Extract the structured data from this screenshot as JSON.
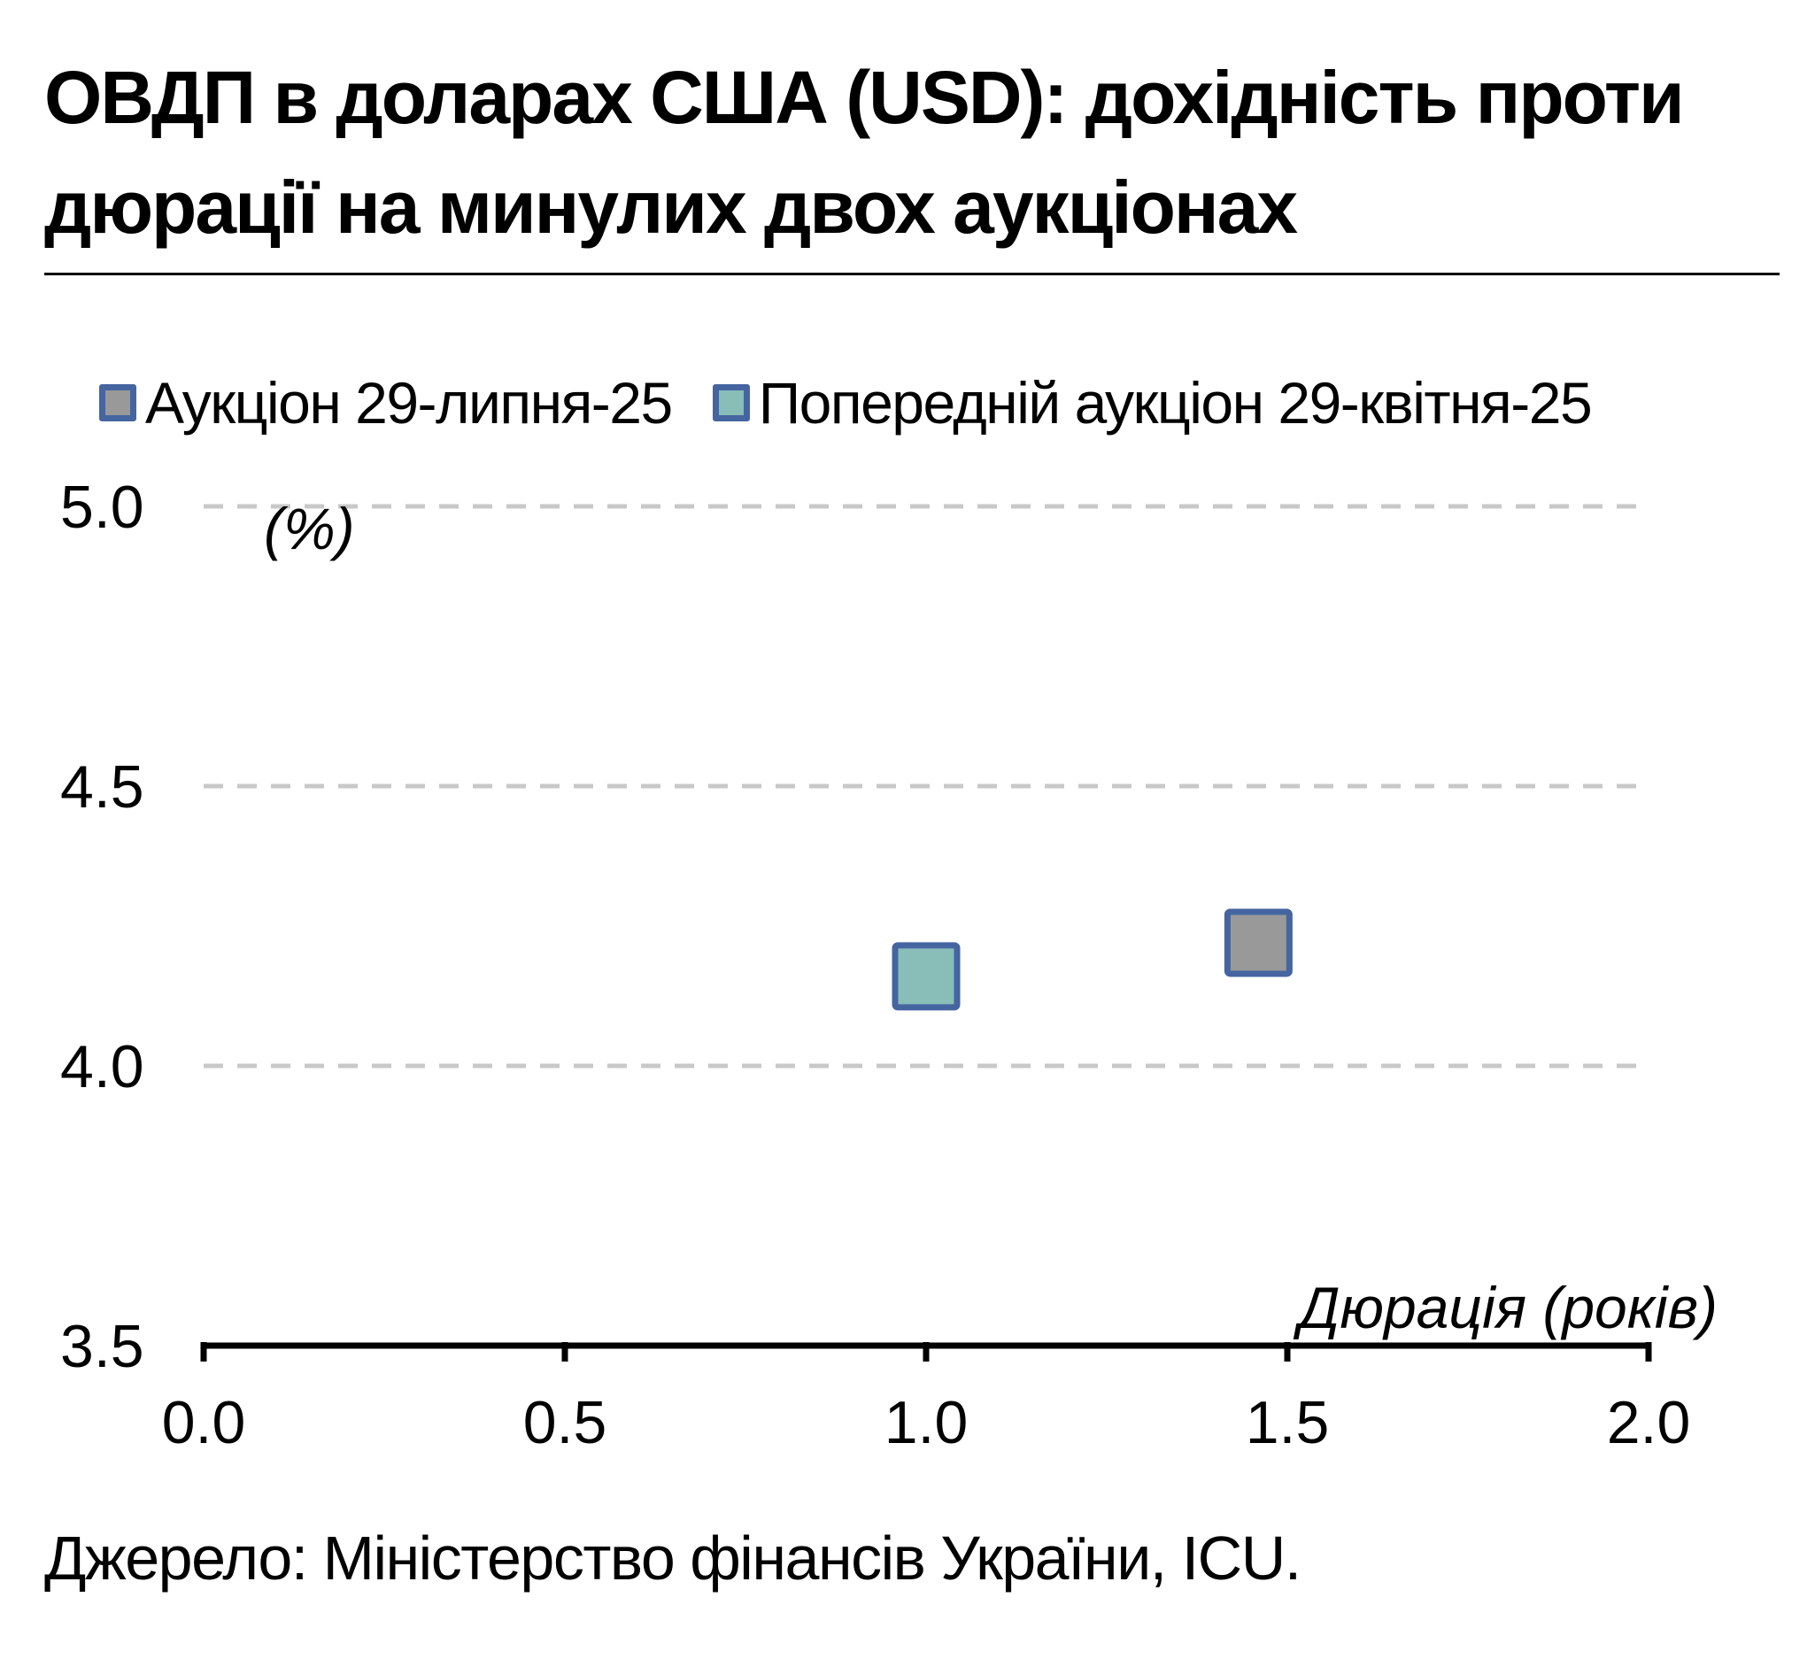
{
  "title": "ОВДП в доларах США (USD): дохідність проти дюрації на минулих двох аукціонах",
  "source": "Джерело: Міністерство фінансів України, ICU.",
  "colors": {
    "marker_border": "#4565a0",
    "current_fill": "#999999",
    "previous_fill": "#88bdb8",
    "grid": "#c8c8c8",
    "axis": "#000000"
  },
  "chart_data": {
    "type": "scatter",
    "title": "ОВДП в доларах США (USD): дохідність проти дюрації на минулих двох аукціонах",
    "xlabel": "Дюрація (років)",
    "ylabel": "(%)",
    "xlim": [
      0.0,
      2.0
    ],
    "ylim": [
      3.5,
      5.0
    ],
    "xticks": [
      "0.0",
      "0.5",
      "1.0",
      "1.5",
      "2.0"
    ],
    "yticks": [
      "3.5",
      "4.0",
      "4.5",
      "5.0"
    ],
    "grid": "horizontal dashed",
    "legend_position": "top",
    "series": [
      {
        "name": "Аукціон 29-липня-25",
        "color": "#999999",
        "marker": "square",
        "x": [
          1.46
        ],
        "y": [
          4.22
        ]
      },
      {
        "name": "Попередній аукціон 29-квітня-25",
        "color": "#88bdb8",
        "marker": "square",
        "x": [
          1.0
        ],
        "y": [
          4.16
        ]
      }
    ]
  }
}
